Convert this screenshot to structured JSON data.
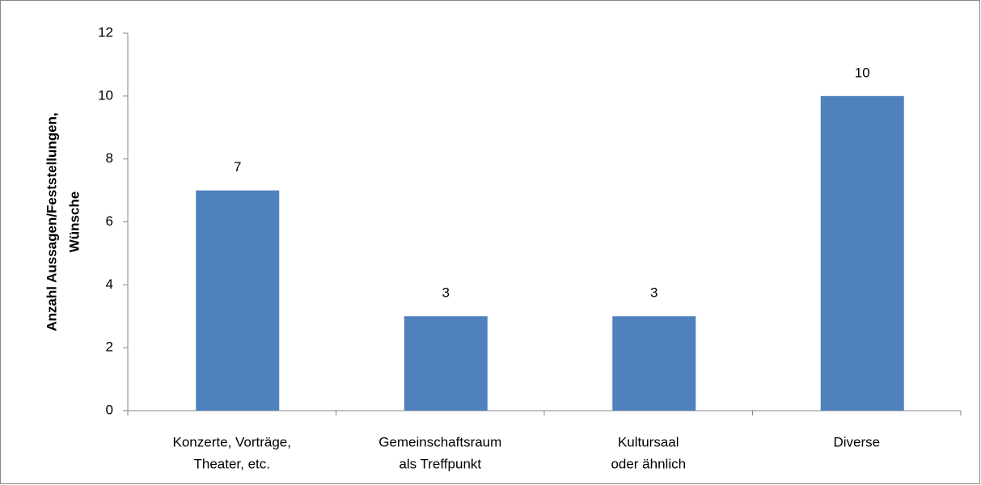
{
  "chart_data": {
    "type": "bar",
    "y_label": [
      "Anzahl Aussagen/Feststellungen,",
      "Wünsche"
    ],
    "categories": [
      [
        "Konzerte, Vorträge,",
        "Theater, etc."
      ],
      [
        "Gemeinschaftsraum",
        "als Treffpunkt"
      ],
      [
        "Kultursaal",
        "oder ähnlich"
      ],
      [
        "Diverse"
      ]
    ],
    "values": [
      7,
      3,
      3,
      10
    ],
    "color": "#4f81bd",
    "ylim": [
      0,
      12
    ],
    "yticks": [
      0,
      2,
      4,
      6,
      8,
      10,
      12
    ],
    "grid": false
  }
}
